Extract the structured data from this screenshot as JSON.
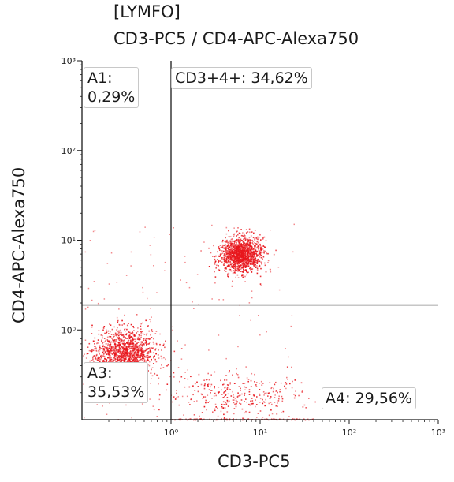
{
  "chart_data": {
    "type": "scatter",
    "title": "[LYMFO]",
    "subtitle": "CD3-PC5 / CD4-APC-Alexa750",
    "xlabel": "CD3-PC5",
    "ylabel": "CD4-APC-Alexa750",
    "x_scale": "log",
    "y_scale": "log",
    "xlim": [
      0.1,
      1000
    ],
    "ylim": [
      0.1,
      1000
    ],
    "x_ticks": [
      "10⁰",
      "10¹",
      "10²",
      "10³"
    ],
    "y_ticks": [
      "10⁰",
      "10¹",
      "10²",
      "10³"
    ],
    "quadrant_x": 1,
    "quadrant_y": 1.9,
    "gates": {
      "a1": "A1:\n0,29%",
      "a2": "CD3+4+: 34,62%",
      "a3": "A3:\n35,53%",
      "a4": "A4: 29,56%"
    },
    "clusters": [
      {
        "name": "CD3+CD4+",
        "center_x": 6,
        "center_y": 7,
        "count": 1400
      },
      {
        "name": "A3",
        "center_x": 0.3,
        "center_y": 0.55,
        "count": 1300
      },
      {
        "name": "A4",
        "center_x": 5,
        "center_y": 0.2,
        "count": 300
      }
    ],
    "grid": false,
    "point_color": "#e8161c"
  }
}
